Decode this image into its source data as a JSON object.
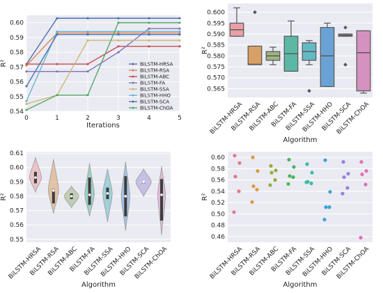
{
  "chart_data": [
    {
      "type": "line",
      "xlabel": "Iterations",
      "ylabel": "R²",
      "xlim": [
        0,
        5
      ],
      "ylim": [
        0.54,
        0.605
      ],
      "xticks": [
        0,
        1,
        2,
        3,
        4,
        5
      ],
      "yticks": [
        0.54,
        0.55,
        0.56,
        0.57,
        0.58,
        0.59,
        0.6
      ],
      "ytick_labels": [
        "0.54",
        "0.55",
        "0.56",
        "0.57",
        "0.58",
        "0.59",
        "0.60"
      ],
      "x": [
        0,
        1,
        2,
        3,
        4,
        5
      ],
      "legend_position": "lower-right",
      "series": [
        {
          "name": "BiLSTM-HRSA",
          "color": "#4c72b0",
          "values": [
            0.572,
            0.603,
            0.603,
            0.603,
            0.603,
            0.603
          ]
        },
        {
          "name": "BiLSTM-RSA",
          "color": "#dd8452",
          "values": [
            0.571,
            0.593,
            0.593,
            0.593,
            0.593,
            0.593
          ]
        },
        {
          "name": "BiLSTM-ABC",
          "color": "#c44e52",
          "values": [
            0.572,
            0.572,
            0.572,
            0.584,
            0.584,
            0.584
          ]
        },
        {
          "name": "BiLSTM-FA",
          "color": "#8172b3",
          "values": [
            0.567,
            0.567,
            0.567,
            0.58,
            0.596,
            0.596
          ]
        },
        {
          "name": "BiLSTM-SSA",
          "color": "#ccb974",
          "values": [
            0.545,
            0.551,
            0.588,
            0.588,
            0.588,
            0.588
          ]
        },
        {
          "name": "BiLSTM-HHO",
          "color": "#64b5cd",
          "values": [
            0.547,
            0.594,
            0.594,
            0.594,
            0.594,
            0.594
          ]
        },
        {
          "name": "BiLSTM-SCA",
          "color": "#4c72b0",
          "values": [
            0.557,
            0.592,
            0.592,
            0.592,
            0.592,
            0.592
          ]
        },
        {
          "name": "BiLSTM-ChOA",
          "color": "#55a868",
          "values": [
            0.541,
            0.551,
            0.551,
            0.6,
            0.6,
            0.6
          ]
        }
      ]
    },
    {
      "type": "box",
      "xlabel": "Algorithm",
      "ylabel": "R²",
      "ylim": [
        0.561,
        0.604
      ],
      "yticks": [
        0.565,
        0.57,
        0.575,
        0.58,
        0.585,
        0.59,
        0.595,
        0.6
      ],
      "ytick_labels": [
        "0.565",
        "0.570",
        "0.575",
        "0.580",
        "0.585",
        "0.590",
        "0.595",
        "0.600"
      ],
      "categories": [
        "BiLSTM-HRSA",
        "BiLSTM-RSA",
        "BiLSTM-ABC",
        "BiLSTM-FA",
        "BiLSTM-SSA",
        "BiLSTM-HHO",
        "BiLSTM-SCA",
        "BiLSTM-ChOA"
      ],
      "colors": [
        "#e8a0a6",
        "#d8a065",
        "#9fb582",
        "#5cb8a5",
        "#63b9c5",
        "#6aa3d3",
        "#a59ad6",
        "#d591c0"
      ],
      "boxes": [
        {
          "whisker_low": 0.589,
          "q1": 0.589,
          "median": 0.592,
          "q3": 0.595,
          "whisker_high": 0.602,
          "outliers": []
        },
        {
          "whisker_low": 0.576,
          "q1": 0.576,
          "median": 0.5762,
          "q3": 0.5845,
          "whisker_high": 0.5845,
          "outliers": [
            0.6
          ]
        },
        {
          "whisker_low": 0.576,
          "q1": 0.578,
          "median": 0.58,
          "q3": 0.582,
          "whisker_high": 0.584,
          "outliers": []
        },
        {
          "whisker_low": 0.573,
          "q1": 0.573,
          "median": 0.581,
          "q3": 0.589,
          "whisker_high": 0.596,
          "outliers": []
        },
        {
          "whisker_low": 0.576,
          "q1": 0.578,
          "median": 0.582,
          "q3": 0.586,
          "whisker_high": 0.587,
          "outliers": [
            0.564
          ]
        },
        {
          "whisker_low": 0.566,
          "q1": 0.566,
          "median": 0.58,
          "q3": 0.593,
          "whisker_high": 0.595,
          "outliers": []
        },
        {
          "whisker_low": 0.589,
          "q1": 0.589,
          "median": 0.5895,
          "q3": 0.59,
          "whisker_high": 0.59,
          "outliers": [
            0.593,
            0.576
          ]
        },
        {
          "whisker_low": 0.563,
          "q1": 0.564,
          "median": 0.5815,
          "q3": 0.5915,
          "whisker_high": 0.5915,
          "outliers": []
        }
      ]
    },
    {
      "type": "violin",
      "xlabel": "Algorithm",
      "ylabel": "R²",
      "ylim": [
        0.548,
        0.611
      ],
      "yticks": [
        0.55,
        0.56,
        0.57,
        0.58,
        0.59,
        0.6,
        0.61
      ],
      "ytick_labels": [
        "0.55",
        "0.56",
        "0.57",
        "0.58",
        "0.59",
        "0.60",
        "0.61"
      ],
      "categories": [
        "BiLSTM-HRSA",
        "BiLSTM-RSA",
        "BiLSTM-ABC",
        "BiLSTM-FA",
        "BiLSTM-SSA",
        "BiLSTM-HHO",
        "BiLSTM-SCA",
        "BiLSTM-ChOA"
      ],
      "colors": [
        "#e8a0a6",
        "#d8a065",
        "#9fb582",
        "#5cb8a5",
        "#63b9c5",
        "#6aa3d3",
        "#a59ad6",
        "#d591c0"
      ],
      "violins": [
        {
          "low": 0.583,
          "high": 0.607,
          "half_width": 0.7,
          "q1": 0.589,
          "median": 0.593,
          "q3": 0.597
        },
        {
          "low": 0.568,
          "high": 0.606,
          "half_width": 0.6,
          "q1": 0.575,
          "median": 0.584,
          "q3": 0.585
        },
        {
          "low": 0.572,
          "high": 0.587,
          "half_width": 0.85,
          "q1": 0.578,
          "median": 0.58,
          "q3": 0.582
        },
        {
          "low": 0.566,
          "high": 0.603,
          "half_width": 0.55,
          "q1": 0.574,
          "median": 0.581,
          "q3": 0.593
        },
        {
          "low": 0.562,
          "high": 0.599,
          "half_width": 0.55,
          "q1": 0.578,
          "median": 0.582,
          "q3": 0.586
        },
        {
          "low": 0.556,
          "high": 0.604,
          "half_width": 0.5,
          "q1": 0.566,
          "median": 0.58,
          "q3": 0.594
        },
        {
          "low": 0.58,
          "high": 0.599,
          "half_width": 0.9,
          "q1": 0.589,
          "median": 0.59,
          "q3": 0.59
        },
        {
          "low": 0.553,
          "high": 0.601,
          "half_width": 0.45,
          "q1": 0.563,
          "median": 0.581,
          "q3": 0.592
        }
      ]
    },
    {
      "type": "scatter",
      "xlabel": "Algorithm",
      "ylabel": "R²",
      "ylim": [
        0.45,
        0.61
      ],
      "yticks": [
        0.46,
        0.48,
        0.5,
        0.52,
        0.54,
        0.56,
        0.58,
        0.6
      ],
      "ytick_labels": [
        "0.46",
        "0.48",
        "0.50",
        "0.52",
        "0.54",
        "0.56",
        "0.58",
        "0.60"
      ],
      "categories": [
        "BiLSTM-HRSA",
        "BiLSTM-RSA",
        "BiLSTM-ABC",
        "BiLSTM-FA",
        "BiLSTM-SSA",
        "BiLSTM-HHO",
        "BiLSTM-SCA",
        "BiLSTM-ChOA"
      ],
      "colors": [
        "#e8768c",
        "#dd9a3e",
        "#9aa838",
        "#4cb35c",
        "#3dbba4",
        "#3fa3d6",
        "#9a82d8",
        "#e070b8"
      ],
      "points": [
        [
          0.603,
          0.59,
          0.566,
          0.54,
          0.503
        ],
        [
          0.6,
          0.576,
          0.549,
          0.543,
          0.521
        ],
        [
          0.585,
          0.577,
          0.573,
          0.56,
          0.551
        ],
        [
          0.596,
          0.583,
          0.567,
          0.565,
          0.553
        ],
        [
          0.588,
          0.573,
          0.557,
          0.554,
          0.556
        ],
        [
          0.595,
          0.539,
          0.512,
          0.512,
          0.49
        ],
        [
          0.592,
          0.571,
          0.565,
          0.546,
          0.536
        ],
        [
          0.592,
          0.576,
          0.57,
          0.552,
          0.458
        ]
      ]
    }
  ]
}
